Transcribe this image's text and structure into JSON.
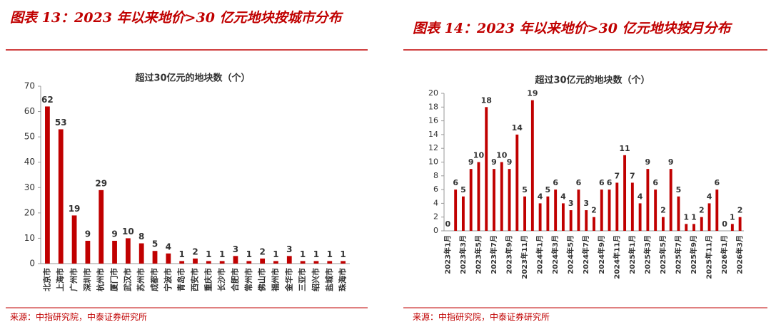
{
  "panels": [
    {
      "heading": "图表 13：2023 年以来地价>30 亿元地块按城市分布",
      "source": "来源：中指研究院，中泰证券研究所"
    },
    {
      "heading": "图表 14：2023 年以来地价>30 亿元地块按月分布",
      "source": "来源：中指研究院，中泰证券研究所"
    }
  ],
  "chart_data": [
    {
      "type": "bar",
      "title": "超过30亿元的地块数（个）",
      "categories": [
        "北京市",
        "上海市",
        "广州市",
        "深圳市",
        "杭州市",
        "厦门市",
        "武汉市",
        "苏州市",
        "成都市",
        "宁波市",
        "青岛市",
        "西安市",
        "重庆市",
        "长沙市",
        "合肥市",
        "常州市",
        "佛山市",
        "福州市",
        "金华市",
        "三亚市",
        "绍兴市",
        "盐城市",
        "珠海市"
      ],
      "values": [
        62,
        53,
        19,
        9,
        29,
        9,
        10,
        8,
        5,
        4,
        1,
        2,
        1,
        1,
        3,
        1,
        2,
        1,
        3,
        1,
        1,
        1,
        1
      ],
      "color": "#c00000",
      "ylim": [
        0,
        70
      ],
      "yticks": [
        0,
        10,
        20,
        30,
        40,
        50,
        60,
        70
      ],
      "grid": false
    },
    {
      "type": "bar",
      "title": "超过30亿元的地块数（个）",
      "categories": [
        "2023年1月",
        null,
        "2023年3月",
        null,
        "2023年5月",
        null,
        "2023年7月",
        null,
        "2023年9月",
        null,
        "2023年11月",
        null,
        "2024年1月",
        null,
        "2024年3月",
        null,
        "2024年5月",
        null,
        "2024年7月",
        null,
        "2024年9月",
        null,
        "2024年11月",
        null,
        "2025年1月",
        null,
        "2025年3月",
        null,
        "2025年5月",
        null,
        "2025年7月",
        null,
        "2025年9月",
        null,
        "2025年11月",
        null,
        "2026年1月",
        null,
        "2026年3月"
      ],
      "values": [
        0,
        6,
        5,
        9,
        10,
        18,
        9,
        10,
        9,
        14,
        5,
        19,
        4,
        5,
        6,
        4,
        3,
        6,
        3,
        2,
        6,
        6,
        7,
        11,
        7,
        4,
        9,
        6,
        2,
        9,
        5,
        1,
        1,
        2,
        4,
        6,
        0,
        1,
        2
      ],
      "color": "#c00000",
      "ylim": [
        0,
        20
      ],
      "yticks": [
        0,
        2,
        4,
        6,
        8,
        10,
        12,
        14,
        16,
        18,
        20
      ],
      "grid": false
    }
  ]
}
